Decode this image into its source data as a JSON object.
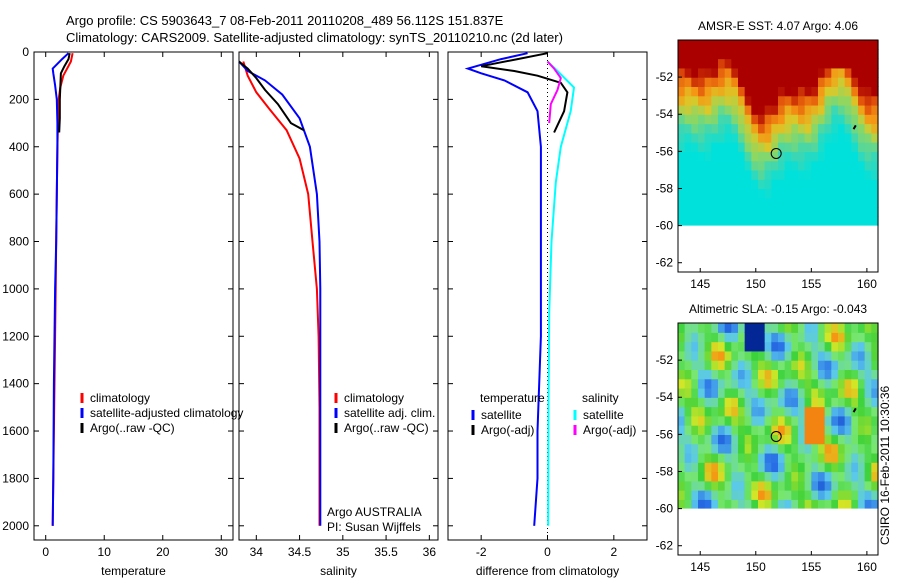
{
  "header": {
    "line1": "Argo profile: CS 5903643_7 08-Feb-2011 20110208_489 56.112S 151.837E",
    "line2": "Climatology: CARS2009. Satellite-adjusted climatology: synTS_20110210.nc (2d later)"
  },
  "credit": "CSIRO 16-Feb-2011 10:30:36",
  "colors": {
    "climatology": "#ff0000",
    "satellite": "#0000ff",
    "argo": "#000000",
    "sal_satellite": "#00ffff",
    "sal_argo": "#ff00ff"
  },
  "chart_data": [
    {
      "id": "temperature",
      "type": "line",
      "xlabel": "temperature",
      "ylabel": "",
      "xlim": [
        -2,
        32
      ],
      "ylim": [
        2060,
        0
      ],
      "y_reversed": true,
      "xticks": [
        0,
        10,
        20,
        30
      ],
      "yticks": [
        0,
        200,
        400,
        600,
        800,
        1000,
        1200,
        1400,
        1600,
        1800,
        2000
      ],
      "legend": [
        "climatology",
        "satellite-adjusted climatology",
        "Argo(..raw -QC)"
      ],
      "series": [
        {
          "name": "climatology",
          "color": "#ff0000",
          "x": [
            4.6,
            4.3,
            3.0,
            2.5,
            2.2,
            2.1,
            2.0,
            1.9,
            1.8,
            1.7,
            1.6,
            1.5,
            1.3,
            1.2
          ],
          "y": [
            5,
            40,
            100,
            150,
            200,
            300,
            400,
            600,
            800,
            1000,
            1200,
            1400,
            1800,
            2000
          ]
        },
        {
          "name": "satellite-adjusted climatology",
          "color": "#0000ff",
          "x": [
            3.9,
            2.8,
            1.2,
            1.3,
            1.6,
            1.9,
            2.0,
            2.0,
            1.9,
            1.8,
            1.6,
            1.5,
            1.4,
            1.3,
            1.2
          ],
          "y": [
            5,
            30,
            70,
            90,
            140,
            200,
            300,
            400,
            600,
            800,
            1000,
            1200,
            1400,
            1800,
            2000
          ]
        },
        {
          "name": "Argo(..raw -QC)",
          "color": "#000000",
          "x": [
            4.1,
            3.9,
            3.2,
            2.6,
            2.5,
            2.4,
            2.4,
            2.3
          ],
          "y": [
            5,
            30,
            60,
            90,
            150,
            200,
            280,
            340
          ]
        }
      ]
    },
    {
      "id": "salinity",
      "type": "line",
      "xlabel": "salinity",
      "ylabel": "",
      "xlim": [
        33.8,
        36.1
      ],
      "ylim": [
        2060,
        0
      ],
      "y_reversed": true,
      "xticks": [
        34,
        34.5,
        35,
        35.5,
        36
      ],
      "legend": [
        "climatology",
        "satellite adj. clim.",
        "Argo(..raw -QC)"
      ],
      "annotations": [
        "Argo AUSTRALIA",
        "PI: Susan Wijffels"
      ],
      "series": [
        {
          "name": "climatology",
          "color": "#ff0000",
          "x": [
            33.85,
            33.9,
            34.0,
            34.15,
            34.35,
            34.5,
            34.6,
            34.65,
            34.7,
            34.72,
            34.73,
            34.73
          ],
          "y": [
            40,
            100,
            170,
            240,
            330,
            450,
            600,
            800,
            1000,
            1200,
            1500,
            2000
          ]
        },
        {
          "name": "satellite adj. clim.",
          "color": "#0000ff",
          "x": [
            33.8,
            33.9,
            34.1,
            34.3,
            34.5,
            34.62,
            34.7,
            34.73,
            34.74,
            34.74,
            34.74
          ],
          "y": [
            40,
            80,
            120,
            180,
            280,
            400,
            600,
            800,
            1000,
            1400,
            2000
          ]
        },
        {
          "name": "Argo(..raw -QC)",
          "color": "#000000",
          "x": [
            33.8,
            33.9,
            34.0,
            34.1,
            34.25,
            34.4,
            34.55
          ],
          "y": [
            40,
            70,
            110,
            160,
            220,
            300,
            330
          ]
        }
      ]
    },
    {
      "id": "difference",
      "type": "line",
      "xlabel": "difference from climatology",
      "ylabel": "",
      "xlim": [
        -3,
        3
      ],
      "ylim": [
        2060,
        0
      ],
      "y_reversed": true,
      "xticks": [
        -2,
        0,
        2
      ],
      "legend": [
        "temperature",
        "satellite",
        "Argo(-adj)",
        "salinity",
        "satellite",
        "Argo(-adj)"
      ],
      "series": [
        {
          "name": "temperature satellite",
          "color": "#0000ff",
          "x": [
            -0.6,
            -1.4,
            -2.4,
            -2.0,
            -1.3,
            -0.6,
            -0.3,
            -0.2,
            -0.2,
            -0.2,
            -0.3,
            -0.3,
            -0.4
          ],
          "y": [
            5,
            30,
            70,
            90,
            120,
            170,
            250,
            400,
            800,
            1200,
            1600,
            1800,
            2000
          ]
        },
        {
          "name": "temperature Argo(-adj)",
          "color": "#000000",
          "x": [
            0.0,
            -0.9,
            -2.0,
            -1.0,
            -0.3,
            0.4,
            0.6,
            0.5,
            0.2
          ],
          "y": [
            5,
            30,
            60,
            80,
            100,
            130,
            170,
            250,
            340
          ]
        },
        {
          "name": "salinity satellite",
          "color": "#00ffff",
          "x": [
            0.0,
            0.3,
            0.8,
            0.7,
            0.4,
            0.25,
            0.12,
            0.05,
            0.03,
            0.02
          ],
          "y": [
            40,
            80,
            150,
            250,
            400,
            550,
            800,
            1100,
            1500,
            2000
          ]
        },
        {
          "name": "salinity Argo(-adj)",
          "color": "#ff00ff",
          "x": [
            0.0,
            0.2,
            0.4,
            0.3,
            0.1,
            0.05
          ],
          "y": [
            40,
            70,
            110,
            160,
            220,
            300
          ]
        }
      ]
    },
    {
      "id": "sst-map",
      "type": "heatmap",
      "title": "AMSR-E SST: 4.07 Argo: 4.06",
      "xlim": [
        143,
        161
      ],
      "ylim": [
        -62.5,
        -50
      ],
      "xticks": [
        145,
        150,
        155,
        160
      ],
      "yticks": [
        -52,
        -54,
        -56,
        -58,
        -60,
        -62
      ],
      "data_extent": {
        "x": [
          143,
          161
        ],
        "y": [
          -60,
          -50
        ]
      },
      "float_position": {
        "lon": 151.837,
        "lat": -56.112
      }
    },
    {
      "id": "sla-map",
      "type": "heatmap",
      "title": "Altimetric SLA: -0.15 Argo: -0.043",
      "xlim": [
        143,
        161
      ],
      "ylim": [
        -62.5,
        -50
      ],
      "xticks": [
        145,
        150,
        155,
        160
      ],
      "yticks": [
        -52,
        -54,
        -56,
        -58,
        -60,
        -62
      ],
      "data_extent": {
        "x": [
          143,
          161
        ],
        "y": [
          -60,
          -50
        ]
      },
      "float_position": {
        "lon": 151.837,
        "lat": -56.112
      }
    }
  ]
}
